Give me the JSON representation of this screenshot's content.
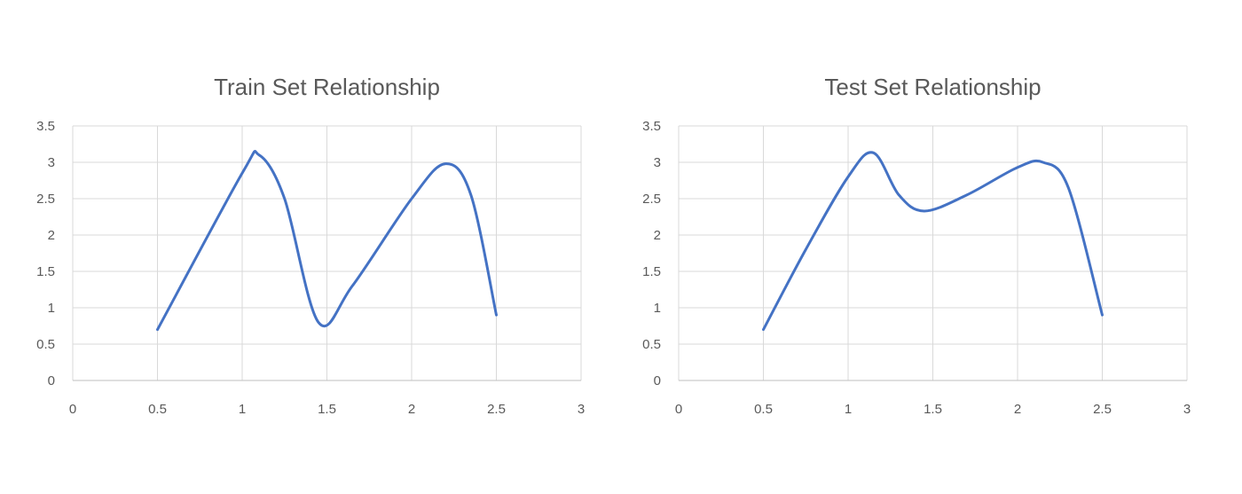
{
  "chart_data": [
    {
      "type": "line",
      "title": "Train Set Relationship",
      "xlabel": "",
      "ylabel": "",
      "xlim": [
        0,
        3
      ],
      "ylim": [
        0,
        3.5
      ],
      "x_ticks": [
        "0",
        "0.5",
        "1",
        "1.5",
        "2",
        "2.5",
        "3"
      ],
      "y_ticks": [
        "0",
        "0.5",
        "1",
        "1.5",
        "2",
        "2.5",
        "3",
        "3.5"
      ],
      "grid": true,
      "legend": "none",
      "series": [
        {
          "color": "#4472c4",
          "x": [
            0.5,
            1.0,
            1.1,
            1.25,
            1.45,
            1.65,
            2.0,
            2.2,
            2.35,
            2.5
          ],
          "y": [
            0.7,
            2.85,
            3.1,
            2.5,
            0.8,
            1.3,
            2.5,
            2.98,
            2.55,
            0.9
          ]
        }
      ]
    },
    {
      "type": "line",
      "title": "Test Set Relationship",
      "xlabel": "",
      "ylabel": "",
      "xlim": [
        0,
        3
      ],
      "ylim": [
        0,
        3.5
      ],
      "x_ticks": [
        "0",
        "0.5",
        "1",
        "1.5",
        "2",
        "2.5",
        "3"
      ],
      "y_ticks": [
        "0",
        "0.5",
        "1",
        "1.5",
        "2",
        "2.5",
        "3",
        "3.5"
      ],
      "grid": true,
      "legend": "none",
      "series": [
        {
          "color": "#4472c4",
          "x": [
            0.5,
            0.75,
            1.0,
            1.15,
            1.3,
            1.45,
            1.7,
            2.0,
            2.15,
            2.3,
            2.5
          ],
          "y": [
            0.7,
            1.8,
            2.8,
            3.13,
            2.55,
            2.33,
            2.55,
            2.93,
            3.0,
            2.65,
            0.9
          ]
        }
      ]
    }
  ]
}
